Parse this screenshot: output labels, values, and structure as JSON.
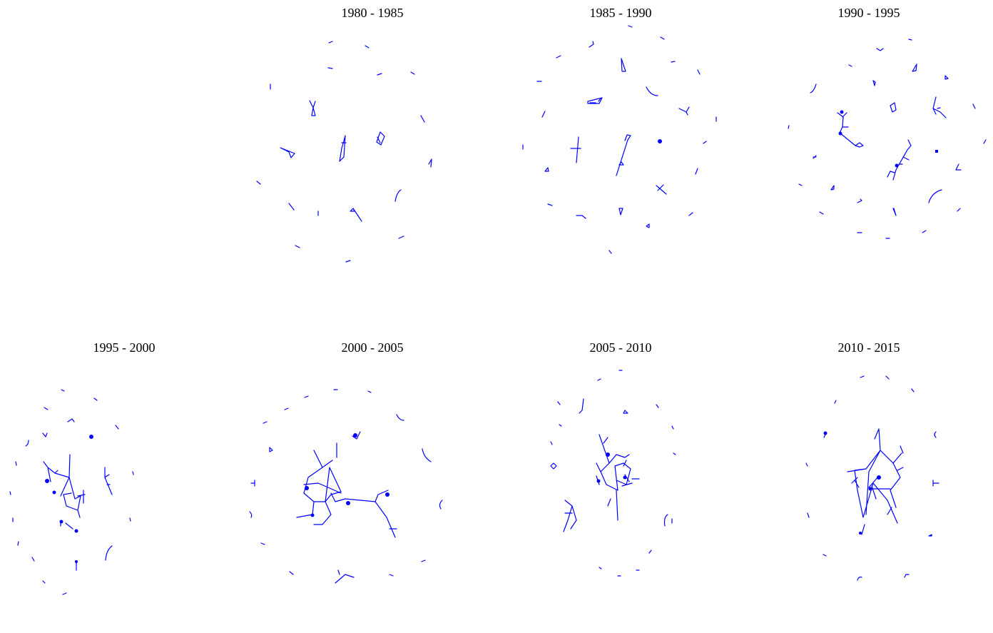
{
  "figure": {
    "edge_color": "#0000ff",
    "panels": [
      {
        "id": "p0",
        "title": ""
      },
      {
        "id": "p1",
        "title": "1980 - 1985"
      },
      {
        "id": "p2",
        "title": "1985 - 1990"
      },
      {
        "id": "p3",
        "title": "1990 - 1995"
      },
      {
        "id": "p4",
        "title": "1995 - 2000"
      },
      {
        "id": "p5",
        "title": "2000 - 2005"
      },
      {
        "id": "p6",
        "title": "2005 - 2010"
      },
      {
        "id": "p7",
        "title": "2010 - 2015"
      }
    ]
  }
}
